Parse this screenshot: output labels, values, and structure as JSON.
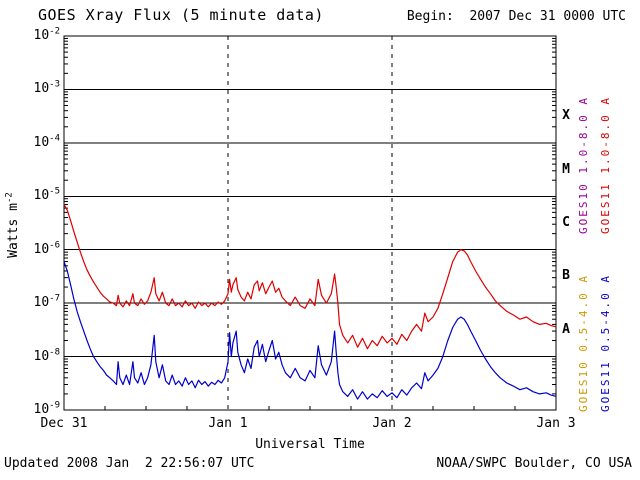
{
  "header": {
    "title": "GOES Xray Flux (5 minute data)",
    "begin_label": "Begin:  2007 Dec 31 0000 UTC"
  },
  "footer": {
    "updated": "Updated 2008 Jan  2 22:56:07 UTC",
    "source": "NOAA/SWPC Boulder, CO USA"
  },
  "axes": {
    "ylabel": "Watts m",
    "ylabel_exp": "-2",
    "xlabel": "Universal Time"
  },
  "flare_classes": [
    {
      "label": "X",
      "center_exp": -3.5
    },
    {
      "label": "M",
      "center_exp": -4.5
    },
    {
      "label": "C",
      "center_exp": -5.5
    },
    {
      "label": "B",
      "center_exp": -6.5
    },
    {
      "label": "A",
      "center_exp": -7.5
    }
  ],
  "legend": [
    {
      "label": "GOES10 1.0-8.0 A",
      "color": "#990099"
    },
    {
      "label": "GOES11 1.0-8.0 A",
      "color": "#dd0000"
    },
    {
      "label": "GOES10 0.5-4.0 A",
      "color": "#cc9900"
    },
    {
      "label": "GOES11 0.5-4.0 A",
      "color": "#0000cc"
    }
  ],
  "chart_data": {
    "type": "line",
    "title": "GOES Xray Flux (5 minute data)",
    "xlabel": "Universal Time",
    "ylabel": "Watts m^-2",
    "x_unit": "days since 2007 Dec 31 0000 UTC",
    "xlim": [
      0,
      3
    ],
    "ylim_exp": [
      -9,
      -2
    ],
    "y_scale": "log",
    "grid": {
      "horizontal": "solid black each decade",
      "vertical": "dashed black at day boundaries"
    },
    "x_ticks": [
      {
        "x": 0,
        "label": "Dec 31"
      },
      {
        "x": 1,
        "label": "Jan 1"
      },
      {
        "x": 2,
        "label": "Jan 2"
      },
      {
        "x": 3,
        "label": "Jan 3"
      }
    ],
    "y_tick_exponents": [
      -2,
      -3,
      -4,
      -5,
      -6,
      -7,
      -8,
      -9
    ],
    "series": [
      {
        "name": "GOES11 1.0-8.0 A",
        "color": "#dd0000",
        "points": [
          [
            0.0,
            7e-06
          ],
          [
            0.02,
            5.5e-06
          ],
          [
            0.04,
            3.5e-06
          ],
          [
            0.06,
            2.2e-06
          ],
          [
            0.08,
            1.4e-06
          ],
          [
            0.1,
            9e-07
          ],
          [
            0.12,
            6e-07
          ],
          [
            0.14,
            4.2e-07
          ],
          [
            0.16,
            3.2e-07
          ],
          [
            0.18,
            2.5e-07
          ],
          [
            0.2,
            2e-07
          ],
          [
            0.22,
            1.6e-07
          ],
          [
            0.24,
            1.35e-07
          ],
          [
            0.26,
            1.2e-07
          ],
          [
            0.28,
            1.05e-07
          ],
          [
            0.3,
            1e-07
          ],
          [
            0.32,
            9e-08
          ],
          [
            0.33,
            1.4e-07
          ],
          [
            0.34,
            1e-07
          ],
          [
            0.36,
            8.5e-08
          ],
          [
            0.38,
            1.1e-07
          ],
          [
            0.4,
            9e-08
          ],
          [
            0.42,
            1.5e-07
          ],
          [
            0.43,
            1e-07
          ],
          [
            0.45,
            9e-08
          ],
          [
            0.47,
            1.2e-07
          ],
          [
            0.49,
            9.5e-08
          ],
          [
            0.51,
            1.1e-07
          ],
          [
            0.53,
            1.6e-07
          ],
          [
            0.55,
            3e-07
          ],
          [
            0.56,
            1.5e-07
          ],
          [
            0.58,
            1.1e-07
          ],
          [
            0.6,
            1.6e-07
          ],
          [
            0.62,
            1e-07
          ],
          [
            0.64,
            9e-08
          ],
          [
            0.66,
            1.2e-07
          ],
          [
            0.68,
            9e-08
          ],
          [
            0.7,
            1e-07
          ],
          [
            0.72,
            8.5e-08
          ],
          [
            0.74,
            1.1e-07
          ],
          [
            0.76,
            9e-08
          ],
          [
            0.78,
            1e-07
          ],
          [
            0.8,
            8e-08
          ],
          [
            0.82,
            1.05e-07
          ],
          [
            0.84,
            9e-08
          ],
          [
            0.86,
            1e-07
          ],
          [
            0.88,
            8.5e-08
          ],
          [
            0.9,
            1e-07
          ],
          [
            0.92,
            9e-08
          ],
          [
            0.94,
            1.05e-07
          ],
          [
            0.96,
            9.5e-08
          ],
          [
            0.98,
            1.1e-07
          ],
          [
            1.0,
            1.5e-07
          ],
          [
            1.01,
            2.8e-07
          ],
          [
            1.02,
            1.6e-07
          ],
          [
            1.03,
            2.2e-07
          ],
          [
            1.05,
            3e-07
          ],
          [
            1.06,
            1.8e-07
          ],
          [
            1.08,
            1.3e-07
          ],
          [
            1.1,
            1.1e-07
          ],
          [
            1.12,
            1.6e-07
          ],
          [
            1.14,
            1.2e-07
          ],
          [
            1.16,
            2.2e-07
          ],
          [
            1.18,
            2.6e-07
          ],
          [
            1.19,
            1.7e-07
          ],
          [
            1.21,
            2.4e-07
          ],
          [
            1.23,
            1.5e-07
          ],
          [
            1.25,
            2e-07
          ],
          [
            1.27,
            2.6e-07
          ],
          [
            1.29,
            1.6e-07
          ],
          [
            1.31,
            1.9e-07
          ],
          [
            1.33,
            1.3e-07
          ],
          [
            1.35,
            1.1e-07
          ],
          [
            1.38,
            9e-08
          ],
          [
            1.41,
            1.3e-07
          ],
          [
            1.44,
            9e-08
          ],
          [
            1.47,
            8e-08
          ],
          [
            1.5,
            1.2e-07
          ],
          [
            1.53,
            9e-08
          ],
          [
            1.55,
            2.8e-07
          ],
          [
            1.57,
            1.4e-07
          ],
          [
            1.6,
            1e-07
          ],
          [
            1.63,
            1.5e-07
          ],
          [
            1.65,
            3.5e-07
          ],
          [
            1.66,
            2e-07
          ],
          [
            1.67,
            1e-07
          ],
          [
            1.68,
            4e-08
          ],
          [
            1.7,
            2.5e-08
          ],
          [
            1.73,
            1.8e-08
          ],
          [
            1.76,
            2.5e-08
          ],
          [
            1.79,
            1.5e-08
          ],
          [
            1.82,
            2.2e-08
          ],
          [
            1.85,
            1.4e-08
          ],
          [
            1.88,
            2e-08
          ],
          [
            1.91,
            1.6e-08
          ],
          [
            1.94,
            2.4e-08
          ],
          [
            1.97,
            1.8e-08
          ],
          [
            2.0,
            2.2e-08
          ],
          [
            2.03,
            1.7e-08
          ],
          [
            2.06,
            2.6e-08
          ],
          [
            2.09,
            2e-08
          ],
          [
            2.12,
            3e-08
          ],
          [
            2.15,
            4e-08
          ],
          [
            2.18,
            3e-08
          ],
          [
            2.2,
            6.5e-08
          ],
          [
            2.22,
            4.5e-08
          ],
          [
            2.25,
            5.5e-08
          ],
          [
            2.28,
            8e-08
          ],
          [
            2.31,
            1.5e-07
          ],
          [
            2.34,
            3e-07
          ],
          [
            2.37,
            6e-07
          ],
          [
            2.4,
            9e-07
          ],
          [
            2.42,
            1e-06
          ],
          [
            2.44,
            9.5e-07
          ],
          [
            2.46,
            8e-07
          ],
          [
            2.48,
            6e-07
          ],
          [
            2.51,
            4e-07
          ],
          [
            2.54,
            2.8e-07
          ],
          [
            2.57,
            2e-07
          ],
          [
            2.6,
            1.5e-07
          ],
          [
            2.63,
            1.1e-07
          ],
          [
            2.66,
            9e-08
          ],
          [
            2.7,
            7e-08
          ],
          [
            2.74,
            6e-08
          ],
          [
            2.78,
            5e-08
          ],
          [
            2.82,
            5.5e-08
          ],
          [
            2.86,
            4.5e-08
          ],
          [
            2.9,
            4e-08
          ],
          [
            2.94,
            4.2e-08
          ],
          [
            2.97,
            3.8e-08
          ],
          [
            3.0,
            3.6e-08
          ]
        ]
      },
      {
        "name": "GOES11 0.5-4.0 A",
        "color": "#0000cc",
        "points": [
          [
            0.0,
            6e-07
          ],
          [
            0.02,
            4e-07
          ],
          [
            0.04,
            2.2e-07
          ],
          [
            0.06,
            1.2e-07
          ],
          [
            0.08,
            7e-08
          ],
          [
            0.1,
            4.5e-08
          ],
          [
            0.12,
            3e-08
          ],
          [
            0.14,
            2e-08
          ],
          [
            0.16,
            1.4e-08
          ],
          [
            0.18,
            1e-08
          ],
          [
            0.2,
            8e-09
          ],
          [
            0.22,
            6.5e-09
          ],
          [
            0.24,
            5.5e-09
          ],
          [
            0.26,
            4.5e-09
          ],
          [
            0.28,
            4e-09
          ],
          [
            0.3,
            3.5e-09
          ],
          [
            0.32,
            3e-09
          ],
          [
            0.33,
            8e-09
          ],
          [
            0.34,
            4e-09
          ],
          [
            0.36,
            3e-09
          ],
          [
            0.38,
            4.5e-09
          ],
          [
            0.4,
            3e-09
          ],
          [
            0.42,
            8e-09
          ],
          [
            0.43,
            4e-09
          ],
          [
            0.45,
            3.2e-09
          ],
          [
            0.47,
            5e-09
          ],
          [
            0.49,
            3e-09
          ],
          [
            0.51,
            4e-09
          ],
          [
            0.53,
            7e-09
          ],
          [
            0.55,
            2.5e-08
          ],
          [
            0.56,
            8e-09
          ],
          [
            0.58,
            4e-09
          ],
          [
            0.6,
            7e-09
          ],
          [
            0.62,
            3.5e-09
          ],
          [
            0.64,
            3e-09
          ],
          [
            0.66,
            4.5e-09
          ],
          [
            0.68,
            3e-09
          ],
          [
            0.7,
            3.5e-09
          ],
          [
            0.72,
            2.8e-09
          ],
          [
            0.74,
            4e-09
          ],
          [
            0.76,
            3e-09
          ],
          [
            0.78,
            3.5e-09
          ],
          [
            0.8,
            2.6e-09
          ],
          [
            0.82,
            3.6e-09
          ],
          [
            0.84,
            3e-09
          ],
          [
            0.86,
            3.4e-09
          ],
          [
            0.88,
            2.8e-09
          ],
          [
            0.9,
            3.3e-09
          ],
          [
            0.92,
            3e-09
          ],
          [
            0.94,
            3.6e-09
          ],
          [
            0.96,
            3.2e-09
          ],
          [
            0.98,
            4e-09
          ],
          [
            1.0,
            8e-09
          ],
          [
            1.01,
            2.8e-08
          ],
          [
            1.02,
            1e-08
          ],
          [
            1.03,
            1.8e-08
          ],
          [
            1.05,
            3e-08
          ],
          [
            1.06,
            1.2e-08
          ],
          [
            1.08,
            7e-09
          ],
          [
            1.1,
            5e-09
          ],
          [
            1.12,
            9e-09
          ],
          [
            1.14,
            6e-09
          ],
          [
            1.16,
            1.5e-08
          ],
          [
            1.18,
            2e-08
          ],
          [
            1.19,
            1e-08
          ],
          [
            1.21,
            1.7e-08
          ],
          [
            1.23,
            8e-09
          ],
          [
            1.25,
            1.3e-08
          ],
          [
            1.27,
            2e-08
          ],
          [
            1.29,
            9e-09
          ],
          [
            1.31,
            1.2e-08
          ],
          [
            1.33,
            7e-09
          ],
          [
            1.35,
            5e-09
          ],
          [
            1.38,
            4e-09
          ],
          [
            1.41,
            6e-09
          ],
          [
            1.44,
            4e-09
          ],
          [
            1.47,
            3.5e-09
          ],
          [
            1.5,
            5.5e-09
          ],
          [
            1.53,
            4e-09
          ],
          [
            1.55,
            1.6e-08
          ],
          [
            1.57,
            7e-09
          ],
          [
            1.6,
            4.5e-09
          ],
          [
            1.63,
            8e-09
          ],
          [
            1.65,
            3e-08
          ],
          [
            1.66,
            1.2e-08
          ],
          [
            1.67,
            5e-09
          ],
          [
            1.68,
            3e-09
          ],
          [
            1.7,
            2.2e-09
          ],
          [
            1.73,
            1.8e-09
          ],
          [
            1.76,
            2.4e-09
          ],
          [
            1.79,
            1.6e-09
          ],
          [
            1.82,
            2.2e-09
          ],
          [
            1.85,
            1.6e-09
          ],
          [
            1.88,
            2e-09
          ],
          [
            1.91,
            1.7e-09
          ],
          [
            1.94,
            2.3e-09
          ],
          [
            1.97,
            1.8e-09
          ],
          [
            2.0,
            2.1e-09
          ],
          [
            2.03,
            1.7e-09
          ],
          [
            2.06,
            2.4e-09
          ],
          [
            2.09,
            1.9e-09
          ],
          [
            2.12,
            2.6e-09
          ],
          [
            2.15,
            3.2e-09
          ],
          [
            2.18,
            2.5e-09
          ],
          [
            2.2,
            5e-09
          ],
          [
            2.22,
            3.5e-09
          ],
          [
            2.25,
            4.5e-09
          ],
          [
            2.28,
            6e-09
          ],
          [
            2.31,
            1e-08
          ],
          [
            2.34,
            2e-08
          ],
          [
            2.37,
            3.5e-08
          ],
          [
            2.4,
            5e-08
          ],
          [
            2.42,
            5.5e-08
          ],
          [
            2.44,
            5e-08
          ],
          [
            2.46,
            4e-08
          ],
          [
            2.48,
            3e-08
          ],
          [
            2.51,
            2e-08
          ],
          [
            2.54,
            1.3e-08
          ],
          [
            2.57,
            9e-09
          ],
          [
            2.6,
            6.5e-09
          ],
          [
            2.63,
            5e-09
          ],
          [
            2.66,
            4e-09
          ],
          [
            2.7,
            3.2e-09
          ],
          [
            2.74,
            2.8e-09
          ],
          [
            2.78,
            2.4e-09
          ],
          [
            2.82,
            2.6e-09
          ],
          [
            2.86,
            2.2e-09
          ],
          [
            2.9,
            2e-09
          ],
          [
            2.94,
            2.1e-09
          ],
          [
            2.97,
            1.9e-09
          ],
          [
            3.0,
            1.8e-09
          ]
        ]
      }
    ]
  }
}
